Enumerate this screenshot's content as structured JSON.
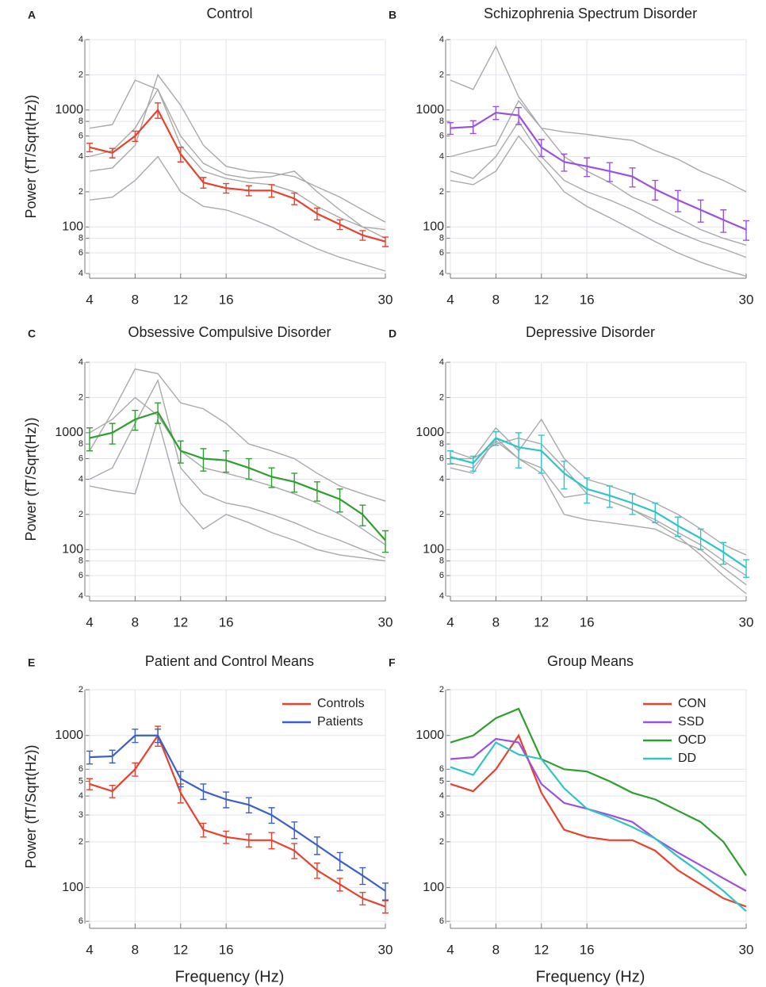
{
  "chart_data": [
    {
      "type": "line",
      "panel_label": "A",
      "title": "Control",
      "ylabel": "Power (fT/Sqrt(Hz))",
      "x": [
        4,
        6,
        8,
        10,
        12,
        14,
        16,
        18,
        20,
        22,
        24,
        26,
        28,
        30
      ],
      "xlim": [
        4,
        30
      ],
      "xticks": [
        4,
        8,
        12,
        16,
        30
      ],
      "log_y": true,
      "grid": true,
      "ylim": [
        40,
        4000
      ],
      "yticks": [
        {
          "value": 40,
          "label": "4"
        },
        {
          "value": 60,
          "label": "6"
        },
        {
          "value": 80,
          "label": "8"
        },
        100,
        {
          "value": 200,
          "label": "2"
        },
        {
          "value": 400,
          "label": "4"
        },
        {
          "value": 600,
          "label": "6"
        },
        {
          "value": 800,
          "label": "8"
        },
        1000,
        {
          "value": 2000,
          "label": "2"
        },
        {
          "value": 4000,
          "label": "4"
        }
      ],
      "series": [
        {
          "color": "#a9a9a9",
          "values": [
            700,
            750,
            1800,
            1500,
            500,
            300,
            260,
            240,
            230,
            200,
            150,
            120,
            100,
            95
          ]
        },
        {
          "color": "#a9a9a9",
          "values": [
            300,
            320,
            500,
            2000,
            1100,
            500,
            330,
            300,
            290,
            270,
            220,
            180,
            140,
            110
          ]
        },
        {
          "color": "#a9a9a9",
          "values": [
            170,
            180,
            250,
            400,
            200,
            150,
            140,
            120,
            100,
            80,
            65,
            55,
            48,
            42
          ]
        },
        {
          "color": "#a9a9a9",
          "values": [
            400,
            450,
            700,
            1500,
            600,
            350,
            280,
            260,
            270,
            300,
            200,
            140,
            100,
            80
          ]
        },
        {
          "color": "#e8412c",
          "values": [
            480,
            430,
            600,
            1000,
            420,
            240,
            215,
            205,
            205,
            175,
            130,
            105,
            85,
            75
          ],
          "errors": [
            40,
            40,
            60,
            150,
            60,
            25,
            20,
            20,
            25,
            20,
            15,
            10,
            8,
            7
          ]
        }
      ]
    },
    {
      "type": "line",
      "panel_label": "B",
      "title": "Schizophrenia Spectrum Disorder",
      "x": [
        4,
        6,
        8,
        10,
        12,
        14,
        16,
        18,
        20,
        22,
        24,
        26,
        28,
        30
      ],
      "xlim": [
        4,
        30
      ],
      "xticks": [
        4,
        8,
        12,
        16,
        30
      ],
      "log_y": true,
      "grid": true,
      "ylim": [
        40,
        4000
      ],
      "yticks": [
        {
          "value": 40,
          "label": "4"
        },
        {
          "value": 60,
          "label": "6"
        },
        {
          "value": 80,
          "label": "8"
        },
        100,
        {
          "value": 200,
          "label": "2"
        },
        {
          "value": 400,
          "label": "4"
        },
        {
          "value": 600,
          "label": "6"
        },
        {
          "value": 800,
          "label": "8"
        },
        1000,
        {
          "value": 2000,
          "label": "2"
        },
        {
          "value": 4000,
          "label": "4"
        }
      ],
      "series": [
        {
          "color": "#a9a9a9",
          "values": [
            1800,
            1500,
            3500,
            1300,
            700,
            650,
            620,
            580,
            550,
            450,
            380,
            300,
            250,
            200
          ]
        },
        {
          "color": "#a9a9a9",
          "values": [
            400,
            450,
            500,
            1200,
            700,
            400,
            300,
            240,
            180,
            150,
            120,
            95,
            80,
            70
          ]
        },
        {
          "color": "#a9a9a9",
          "values": [
            300,
            260,
            400,
            800,
            400,
            250,
            200,
            170,
            140,
            110,
            90,
            75,
            65,
            55
          ]
        },
        {
          "color": "#a9a9a9",
          "values": [
            250,
            230,
            300,
            600,
            350,
            200,
            150,
            120,
            95,
            75,
            60,
            50,
            43,
            38
          ]
        },
        {
          "color": "#9b51e0",
          "values": [
            700,
            720,
            950,
            900,
            480,
            360,
            330,
            300,
            270,
            210,
            170,
            140,
            115,
            95
          ],
          "errors": [
            80,
            90,
            120,
            150,
            80,
            60,
            60,
            55,
            50,
            40,
            35,
            30,
            25,
            18
          ]
        }
      ]
    },
    {
      "type": "line",
      "panel_label": "C",
      "title": "Obsessive Compulsive Disorder",
      "ylabel": "Power (fT/Sqrt(Hz))",
      "x": [
        4,
        6,
        8,
        10,
        12,
        14,
        16,
        18,
        20,
        22,
        24,
        26,
        28,
        30
      ],
      "xlim": [
        4,
        30
      ],
      "xticks": [
        4,
        8,
        12,
        16,
        30
      ],
      "log_y": true,
      "grid": true,
      "ylim": [
        40,
        4000
      ],
      "yticks": [
        {
          "value": 40,
          "label": "4"
        },
        {
          "value": 60,
          "label": "6"
        },
        {
          "value": 80,
          "label": "8"
        },
        100,
        {
          "value": 200,
          "label": "2"
        },
        {
          "value": 400,
          "label": "4"
        },
        {
          "value": 600,
          "label": "6"
        },
        {
          "value": 800,
          "label": "8"
        },
        1000,
        {
          "value": 2000,
          "label": "2"
        },
        {
          "value": 4000,
          "label": "4"
        }
      ],
      "series": [
        {
          "color": "#a9a9a9",
          "values": [
            700,
            1500,
            3500,
            3200,
            1800,
            1600,
            1200,
            800,
            700,
            600,
            450,
            350,
            300,
            260
          ]
        },
        {
          "color": "#a9a9a9",
          "values": [
            400,
            500,
            1200,
            2800,
            500,
            300,
            250,
            230,
            200,
            170,
            140,
            120,
            100,
            85
          ]
        },
        {
          "color": "#a9a9a9",
          "values": [
            350,
            320,
            300,
            1300,
            250,
            150,
            200,
            170,
            140,
            120,
            100,
            90,
            85,
            80
          ]
        },
        {
          "color": "#a9a9a9",
          "values": [
            1000,
            1300,
            2000,
            1400,
            700,
            500,
            450,
            400,
            350,
            300,
            250,
            200,
            150,
            110
          ]
        },
        {
          "color": "#2ca02c",
          "values": [
            900,
            1000,
            1300,
            1500,
            700,
            600,
            580,
            500,
            420,
            380,
            320,
            270,
            200,
            120
          ],
          "errors": [
            200,
            200,
            250,
            300,
            150,
            130,
            120,
            100,
            80,
            70,
            60,
            60,
            40,
            25
          ]
        }
      ]
    },
    {
      "type": "line",
      "panel_label": "D",
      "title": "Depressive Disorder",
      "x": [
        4,
        6,
        8,
        10,
        12,
        14,
        16,
        18,
        20,
        22,
        24,
        26,
        28,
        30
      ],
      "xlim": [
        4,
        30
      ],
      "xticks": [
        4,
        8,
        12,
        16,
        30
      ],
      "log_y": true,
      "grid": true,
      "ylim": [
        40,
        4000
      ],
      "yticks": [
        {
          "value": 40,
          "label": "4"
        },
        {
          "value": 60,
          "label": "6"
        },
        {
          "value": 80,
          "label": "8"
        },
        100,
        {
          "value": 200,
          "label": "2"
        },
        {
          "value": 400,
          "label": "4"
        },
        {
          "value": 600,
          "label": "6"
        },
        {
          "value": 800,
          "label": "8"
        },
        1000,
        {
          "value": 2000,
          "label": "2"
        },
        {
          "value": 4000,
          "label": "4"
        }
      ],
      "series": [
        {
          "color": "#a9a9a9",
          "values": [
            600,
            600,
            1100,
            700,
            1300,
            600,
            400,
            350,
            300,
            250,
            200,
            150,
            110,
            90
          ]
        },
        {
          "color": "#a9a9a9",
          "values": [
            500,
            450,
            900,
            600,
            450,
            200,
            180,
            170,
            160,
            150,
            120,
            100,
            70,
            50
          ]
        },
        {
          "color": "#a9a9a9",
          "values": [
            700,
            600,
            800,
            900,
            800,
            500,
            300,
            260,
            220,
            180,
            140,
            110,
            80,
            60
          ]
        },
        {
          "color": "#a9a9a9",
          "values": [
            550,
            500,
            850,
            600,
            500,
            280,
            300,
            260,
            220,
            170,
            130,
            90,
            60,
            42
          ]
        },
        {
          "color": "#2ec4c9",
          "values": [
            620,
            550,
            900,
            750,
            700,
            450,
            330,
            290,
            250,
            210,
            160,
            125,
            95,
            70
          ],
          "errors": [
            80,
            80,
            120,
            250,
            250,
            120,
            80,
            60,
            50,
            40,
            30,
            25,
            20,
            12
          ]
        }
      ]
    },
    {
      "type": "line",
      "panel_label": "E",
      "title": "Patient and Control Means",
      "ylabel": "Power (fT/Sqrt(Hz))",
      "xlabel": "Frequency (Hz)",
      "x": [
        4,
        6,
        8,
        10,
        12,
        14,
        16,
        18,
        20,
        22,
        24,
        26,
        28,
        30
      ],
      "xlim": [
        4,
        30
      ],
      "xticks": [
        4,
        8,
        12,
        16,
        30
      ],
      "log_y": true,
      "grid": true,
      "ylim": [
        58,
        2000
      ],
      "legend": "upper right",
      "yticks": [
        {
          "value": 60,
          "label": "6"
        },
        100,
        {
          "value": 200,
          "label": "2"
        },
        {
          "value": 300,
          "label": "3"
        },
        {
          "value": 400,
          "label": "4"
        },
        {
          "value": 500,
          "label": "5"
        },
        {
          "value": 600,
          "label": "6"
        },
        1000,
        {
          "value": 2000,
          "label": "2"
        }
      ],
      "series": [
        {
          "name": "Controls",
          "color": "#e8412c",
          "values": [
            480,
            430,
            600,
            1000,
            420,
            240,
            215,
            205,
            205,
            175,
            130,
            105,
            85,
            75
          ],
          "errors": [
            40,
            40,
            60,
            150,
            60,
            25,
            20,
            20,
            25,
            20,
            15,
            10,
            8,
            7
          ]
        },
        {
          "name": "Patients",
          "color": "#3b5fc9",
          "values": [
            720,
            730,
            1000,
            1000,
            520,
            430,
            380,
            350,
            300,
            240,
            190,
            150,
            120,
            95
          ],
          "errors": [
            70,
            70,
            100,
            100,
            60,
            50,
            45,
            40,
            35,
            30,
            25,
            20,
            15,
            12
          ]
        }
      ]
    },
    {
      "type": "line",
      "panel_label": "F",
      "title": "Group Means",
      "xlabel": "Frequency (Hz)",
      "x": [
        4,
        6,
        8,
        10,
        12,
        14,
        16,
        18,
        20,
        22,
        24,
        26,
        28,
        30
      ],
      "xlim": [
        4,
        30
      ],
      "xticks": [
        4,
        8,
        12,
        16,
        30
      ],
      "log_y": true,
      "grid": true,
      "ylim": [
        58,
        2000
      ],
      "legend": "upper right",
      "yticks": [
        {
          "value": 60,
          "label": "6"
        },
        100,
        {
          "value": 200,
          "label": "2"
        },
        {
          "value": 300,
          "label": "3"
        },
        {
          "value": 400,
          "label": "4"
        },
        {
          "value": 500,
          "label": "5"
        },
        {
          "value": 600,
          "label": "6"
        },
        1000,
        {
          "value": 2000,
          "label": "2"
        }
      ],
      "series": [
        {
          "name": "CON",
          "color": "#e8412c",
          "values": [
            480,
            430,
            600,
            1000,
            420,
            240,
            215,
            205,
            205,
            175,
            130,
            105,
            85,
            75
          ]
        },
        {
          "name": "SSD",
          "color": "#9b51e0",
          "values": [
            700,
            720,
            950,
            900,
            480,
            360,
            330,
            300,
            270,
            210,
            170,
            140,
            115,
            95
          ]
        },
        {
          "name": "OCD",
          "color": "#2ca02c",
          "values": [
            900,
            1000,
            1300,
            1500,
            700,
            600,
            580,
            500,
            420,
            380,
            320,
            270,
            200,
            120
          ]
        },
        {
          "name": "DD",
          "color": "#2ec4c9",
          "values": [
            620,
            550,
            900,
            750,
            700,
            450,
            330,
            290,
            250,
            210,
            160,
            125,
            95,
            70
          ]
        }
      ]
    }
  ]
}
